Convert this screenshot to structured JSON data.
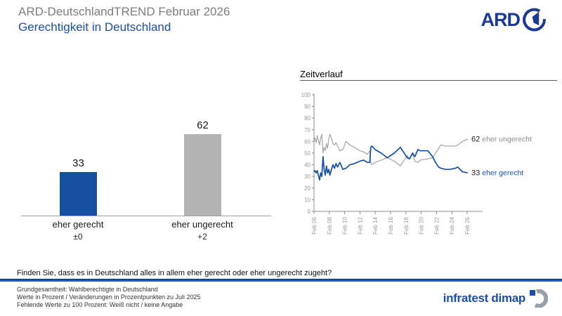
{
  "header": {
    "title": "ARD-DeutschlandTREND Februar 2026",
    "subtitle": "Gerechtigkeit in Deutschland",
    "brand": "ARD"
  },
  "timeline_title": "Zeitverlauf",
  "question": "Finden Sie, dass es in Deutschland alles in allem eher gerecht oder eher ungerecht zugeht?",
  "footnotes": [
    "Grundgesamtheit: Wahlberechtigte in Deutschland",
    "Werte in Prozent / Veränderungen in Prozentpunkten zu Juli 2025",
    "Fehlende Werte zu 100 Prozent: Weiß nicht / keine Angabe"
  ],
  "footer_logo_text": "infratest dimap",
  "colors": {
    "blue": "#17509f",
    "gray_bar": "#b3b3b3",
    "gray_line": "#a9a9a9",
    "axis": "#8c8c8c",
    "tick_text": "#999999",
    "label_black": "#1a1a1a",
    "label_gray": "#8a8a8a",
    "brand_navy": "#1d3a91",
    "accent_blue": "#1d4fa1"
  },
  "chart_data": [
    {
      "type": "bar",
      "categories": [
        "eher gerecht",
        "eher ungerecht"
      ],
      "values": [
        33,
        62
      ],
      "changes": [
        "±0",
        "+2"
      ],
      "bar_colors": [
        "#17509f",
        "#b3b3b3"
      ],
      "ylim": [
        0,
        100
      ]
    },
    {
      "type": "line",
      "title": "Zeitverlauf",
      "ylim": [
        0,
        100
      ],
      "yticks": [
        0,
        10,
        20,
        30,
        40,
        50,
        60,
        70,
        80,
        90,
        100
      ],
      "xticks": [
        "Feb 06",
        "Feb 08",
        "Feb 10",
        "Feb 12",
        "Feb 14",
        "Feb 16",
        "Feb 18",
        "Feb 20",
        "Feb 22",
        "Feb 24",
        "Feb 26"
      ],
      "legend_position": "right-of-line-ends",
      "grid": false,
      "x": [
        2006.0,
        2006.15,
        2006.3,
        2006.45,
        2006.6,
        2006.75,
        2006.9,
        2007.05,
        2007.2,
        2007.35,
        2007.5,
        2007.65,
        2007.8,
        2007.95,
        2008.1,
        2008.3,
        2008.5,
        2008.7,
        2008.9,
        2009.1,
        2009.4,
        2009.8,
        2010.2,
        2010.7,
        2011.3,
        2012.0,
        2012.5,
        2013.0,
        2013.3,
        2013.45,
        2013.6,
        2014.0,
        2014.8,
        2015.6,
        2016.5,
        2017.3,
        2018.2,
        2018.5,
        2018.9,
        2019.2,
        2019.6,
        2019.9,
        2020.9,
        2021.5,
        2021.9,
        2022.3,
        2022.6,
        2023.2,
        2023.8,
        2024.5,
        2024.8,
        2025.4,
        2026.1
      ],
      "series": [
        {
          "name": "eher ungerecht",
          "color": "#a9a9a9",
          "end_value": "62",
          "values": [
            58,
            63,
            59,
            65,
            61,
            57,
            63,
            66,
            50,
            55,
            52,
            58,
            54,
            62,
            66,
            63,
            58,
            57,
            59,
            56,
            52,
            53,
            60,
            57,
            55,
            52,
            51,
            49,
            52,
            41,
            40,
            42,
            44,
            46,
            43,
            39,
            48,
            45,
            49,
            43,
            42,
            44,
            45,
            46,
            50,
            54,
            57,
            56,
            56,
            56,
            57,
            60,
            62
          ]
        },
        {
          "name": "eher gerecht",
          "color": "#17509f",
          "end_value": "33",
          "values": [
            34,
            35,
            33,
            35,
            31,
            27,
            33,
            30,
            47,
            36,
            31,
            39,
            33,
            36,
            31,
            36,
            40,
            37,
            41,
            38,
            42,
            36,
            37,
            40,
            41,
            43,
            44,
            42,
            42,
            55,
            56,
            53,
            50,
            46,
            50,
            55,
            46,
            45,
            50,
            47,
            53,
            52,
            52,
            47,
            42,
            38,
            37,
            36,
            36,
            37,
            38,
            34,
            33
          ]
        }
      ]
    }
  ]
}
